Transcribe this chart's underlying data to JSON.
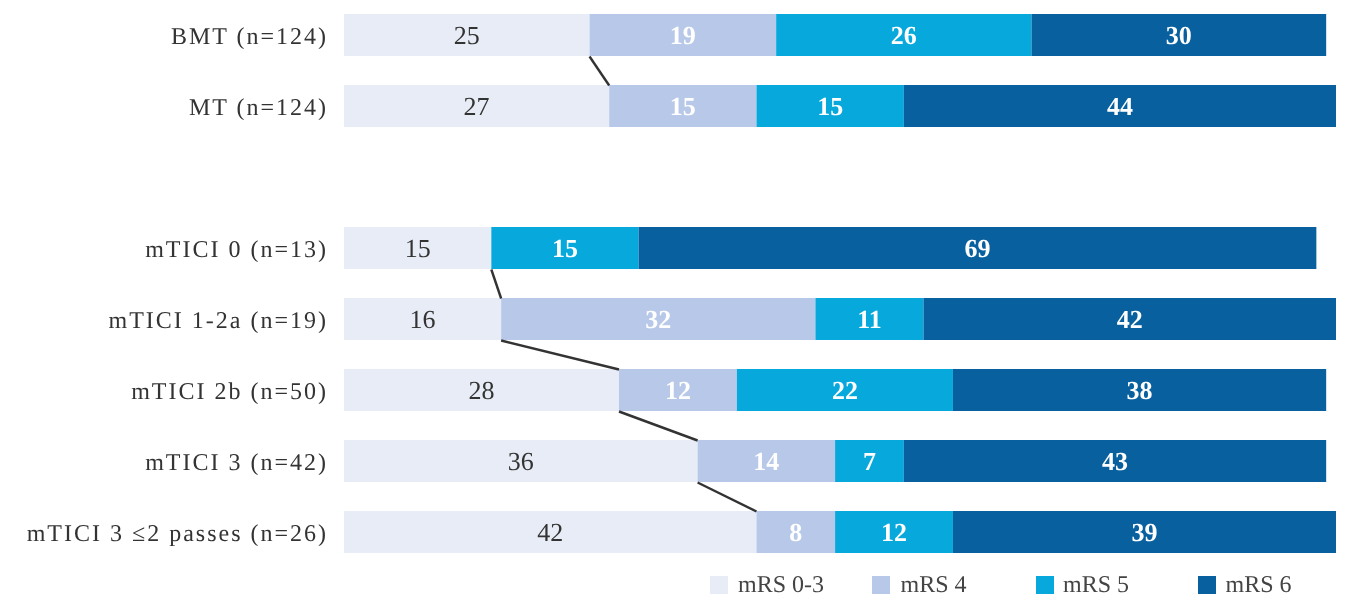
{
  "chart_data": {
    "type": "bar",
    "orientation": "horizontal",
    "stacked": true,
    "data_labels": true,
    "tick_labels": "y",
    "legend": "bottom",
    "xlim": [
      0,
      101
    ],
    "categories": [
      "BMT (n=124)",
      "MT (n=124)",
      null,
      "mTICI 0 (n=13)",
      "mTICI 1-2a (n=19)",
      "mTICI 2b (n=50)",
      "mTICI 3 (n=42)",
      "mTICI 3 ≤2 passes (n=26)"
    ],
    "series": [
      {
        "name": "mRS 0-3",
        "color": "#e8ecf6",
        "values": [
          25,
          27,
          null,
          15,
          16,
          28,
          36,
          42
        ]
      },
      {
        "name": "mRS 4",
        "color": "#b7c8e8",
        "values": [
          19,
          15,
          null,
          null,
          32,
          12,
          14,
          8
        ]
      },
      {
        "name": "mRS 5",
        "color": "#07a9dc",
        "values": [
          26,
          15,
          null,
          15,
          11,
          22,
          7,
          12
        ]
      },
      {
        "name": "mRS 6",
        "color": "#08609f",
        "values": [
          30,
          44,
          null,
          69,
          42,
          38,
          43,
          39
        ]
      }
    ]
  }
}
